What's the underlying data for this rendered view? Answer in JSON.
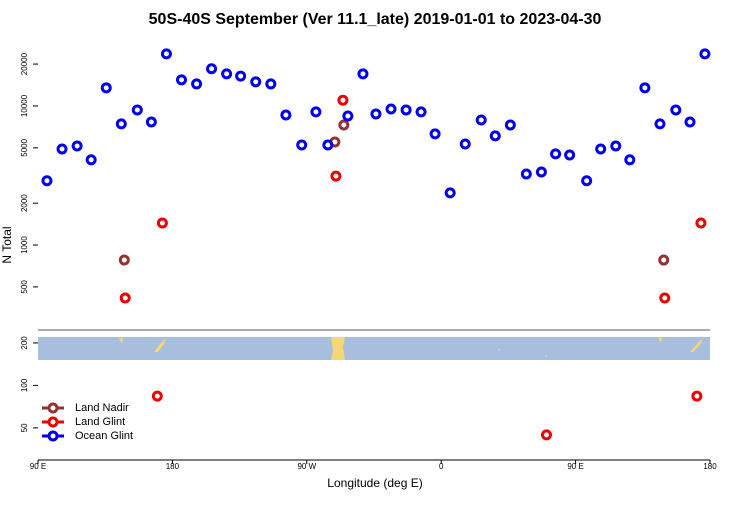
{
  "chart_data": {
    "type": "scatter",
    "title": "50S-40S September (Ver 11.1_late)   2019-01-01 to 2023-04-30",
    "ylabel": "N Total",
    "xlabel": "Longitude (deg E)",
    "log_y": true,
    "legend": "lower left",
    "xlim": [
      90,
      540
    ],
    "xticks": [
      {
        "value": 90,
        "label": "90 E"
      },
      180,
      {
        "value": 270,
        "label": "90 W"
      },
      {
        "value": 360,
        "label": "0"
      },
      {
        "value": 450,
        "label": "90 E"
      },
      {
        "value": 540,
        "label": "180"
      }
    ],
    "ylim": [
      245,
      30800
    ],
    "yticks": [
      500,
      1000,
      2000,
      5000,
      10000,
      20000
    ],
    "y2lim": [
      29.6,
      247
    ],
    "y2ticks": [
      50,
      100,
      200
    ],
    "series": [
      {
        "name": "Land Nadir",
        "color": "#943131",
        "x": [
          147.8,
          288.8,
          294.8,
          509.0
        ],
        "values": [
          780,
          5510,
          7300,
          780
        ]
      },
      {
        "name": "Land Glint",
        "color": "#ee0000",
        "x": [
          148.4,
          173.3,
          289.5,
          294.2,
          509.7,
          533.9
        ],
        "values": [
          416,
          1440,
          3130,
          11000,
          416,
          1440
        ]
      },
      {
        "name": "Ocean Glint",
        "color": "#0000ee",
        "x": [
          96,
          106.1,
          116.2,
          125.6,
          135.7,
          145.8,
          156.5,
          165.9,
          176,
          186.1,
          196.2,
          206.2,
          216.3,
          225.7,
          235.8,
          245.9,
          256,
          266.6,
          276.1,
          284.1,
          297.5,
          307.6,
          316.3,
          326.4,
          336.5,
          346.5,
          355.9,
          366,
          376.1,
          386.8,
          396.2,
          406.3,
          417,
          427.1,
          436.6,
          446,
          457.4,
          466.8,
          476.9,
          486.3,
          496.4,
          506.5,
          517.1,
          526.6,
          536.6
        ],
        "values": [
          2900,
          4900,
          5150,
          4100,
          13500,
          7430,
          9360,
          7670,
          23700,
          15400,
          14400,
          18500,
          17000,
          16400,
          14900,
          14400,
          8610,
          5240,
          9060,
          5240,
          8470,
          17000,
          8760,
          9510,
          9360,
          9060,
          6300,
          2370,
          5330,
          7930,
          6090,
          7300,
          3240,
          3350,
          4520,
          4440,
          2900,
          4900,
          5150,
          4100,
          13500,
          7430,
          9360,
          7670,
          23700
        ]
      },
      {
        "name": "Land Glint",
        "color": "#ee0000",
        "axis": "y2",
        "x": [
          169.9,
          430.5,
          531.2
        ],
        "values": [
          84,
          44.6,
          84
        ]
      }
    ]
  }
}
